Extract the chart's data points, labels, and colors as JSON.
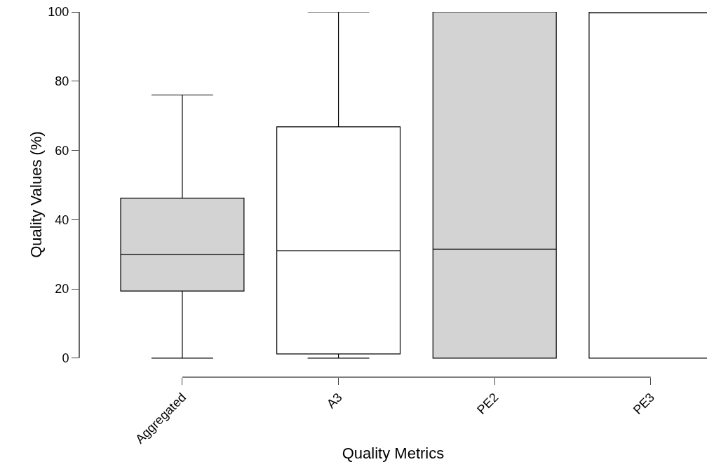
{
  "chart_data": {
    "type": "box",
    "xlabel": "Quality Metrics",
    "ylabel": "Quality Values (%)",
    "categories": [
      "Aggregated",
      "A3",
      "PE2",
      "PE3"
    ],
    "boxes": [
      {
        "low": 0,
        "q1": 19.4,
        "median": 29.9,
        "q3": 46.2,
        "high": 76
      },
      {
        "low": 0,
        "q1": 1.2,
        "median": 31,
        "q3": 66.8,
        "high": 100
      },
      {
        "low": 0,
        "q1": 0,
        "median": 31.5,
        "q3": 100,
        "high": 100
      },
      {
        "low": 0,
        "q1": 0,
        "median": 99.7,
        "q3": 100,
        "high": 100
      }
    ],
    "colors": [
      "#d3d3d3",
      "#ffffff",
      "#d3d3d3",
      "#ffffff"
    ],
    "ylim": [
      0,
      100
    ],
    "yticks": [
      0,
      20,
      40,
      60,
      80,
      100
    ]
  }
}
